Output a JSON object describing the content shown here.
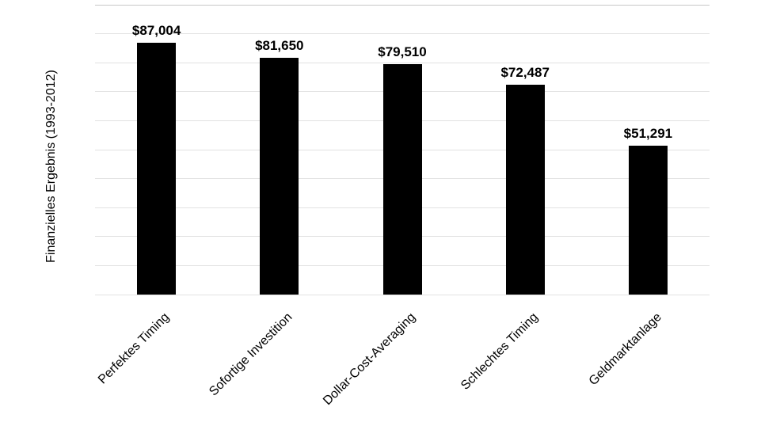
{
  "chart_data": {
    "type": "bar",
    "title": "",
    "xlabel": "",
    "ylabel": "Finanzielles Ergebnis (1993-2012)",
    "categories": [
      "Perfektes Timing",
      "Sofortige Investition",
      "Dollar-Cost-Averaging",
      "Schlechtes Timing",
      "Geldmarktanlage"
    ],
    "values": [
      87004,
      81650,
      79510,
      72487,
      51291
    ],
    "data_labels": [
      "$87,004",
      "$81,650",
      "$79,510",
      "$72,487",
      "$51,291"
    ],
    "ylim": [
      0,
      100000
    ],
    "gridline_step": 10000,
    "grid": "horizontal gridlines on, no axis tick labels",
    "legend": "none",
    "colors": {
      "bar": "#000000",
      "gridline": "#e2e2e2",
      "top_gridline": "#c7c7c7",
      "text": "#000000",
      "background": "#ffffff"
    }
  }
}
